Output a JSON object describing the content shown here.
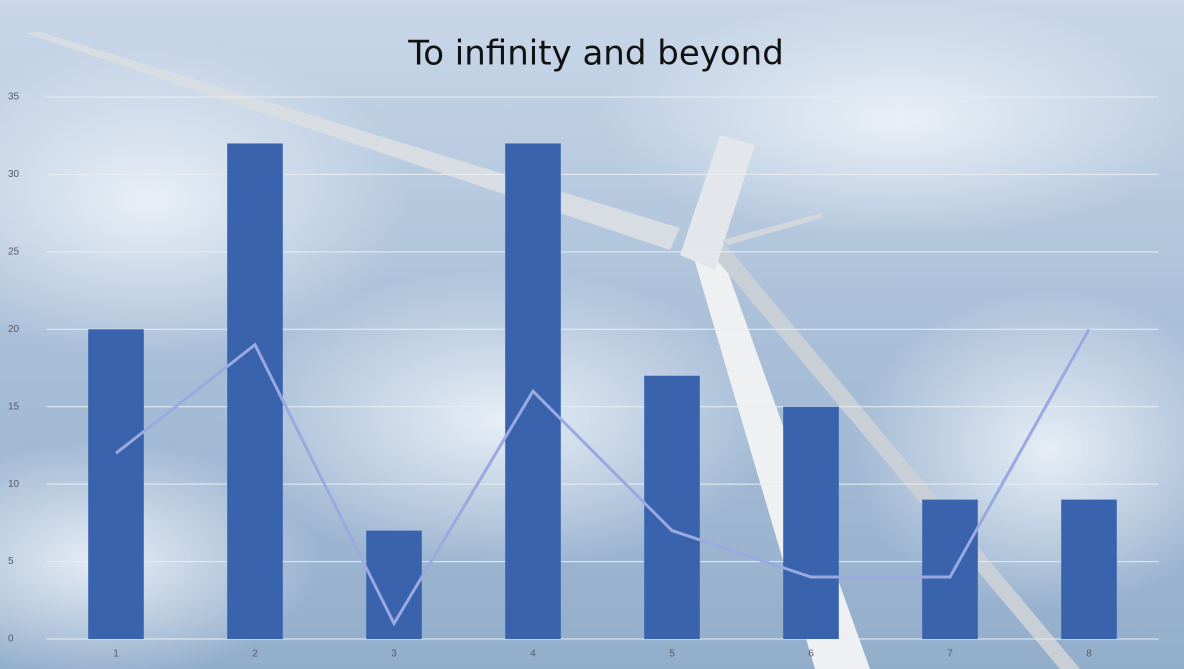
{
  "chart_data": {
    "type": "bar",
    "title": "To infinity and beyond",
    "categories": [
      "1",
      "2",
      "3",
      "4",
      "5",
      "6",
      "7",
      "8"
    ],
    "series": [
      {
        "type": "bar",
        "color": "#3a63ae",
        "values": [
          20,
          32,
          7,
          32,
          17,
          15,
          9,
          9
        ]
      },
      {
        "type": "line",
        "color": "#9aa9df",
        "values": [
          12,
          19,
          1,
          16,
          7,
          4,
          4,
          20
        ]
      }
    ],
    "ylim": [
      0,
      35
    ],
    "yticks": [
      0,
      5,
      10,
      15,
      20,
      25,
      30,
      35
    ],
    "grid": true
  }
}
